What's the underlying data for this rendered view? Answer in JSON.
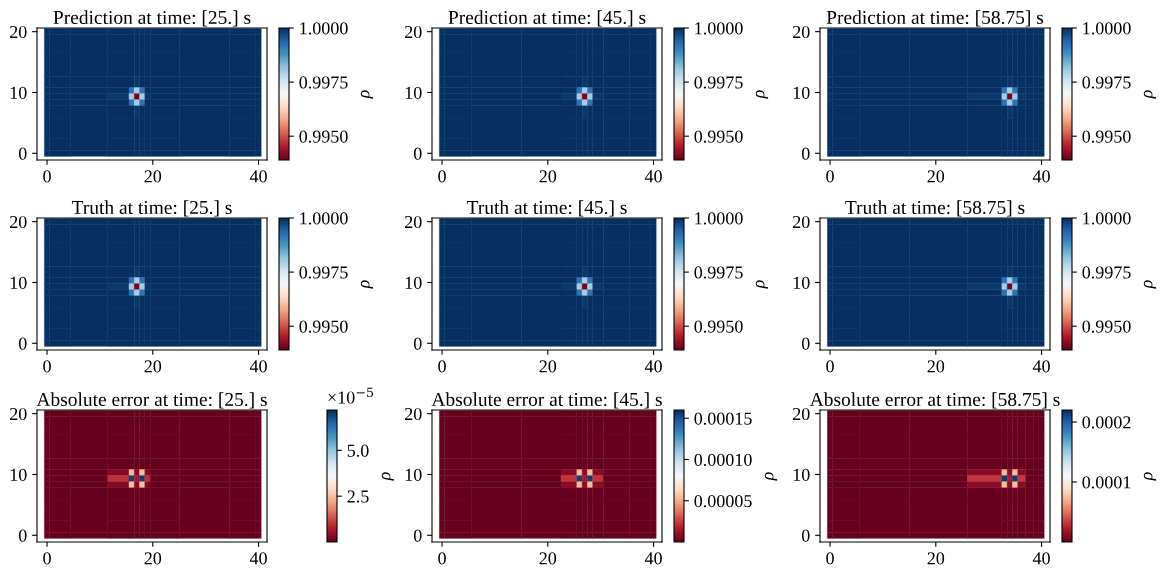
{
  "chart_data": [
    {
      "type": "heatmap",
      "title": "Prediction at time: [25.] s",
      "clabel": "ρ",
      "x": [
        0,
        1,
        8,
        15,
        16,
        17,
        18,
        19,
        20,
        30,
        39,
        40
      ],
      "y": [
        20,
        19,
        14,
        11.3,
        10.3,
        9.3,
        8.3,
        7.3,
        4,
        1,
        0
      ],
      "cells": [
        [
          1,
          1,
          1,
          1,
          1,
          1,
          1,
          1,
          1,
          1,
          1,
          1
        ],
        [
          1,
          1,
          1,
          1,
          1,
          1,
          1,
          1,
          1,
          1,
          1,
          1
        ],
        [
          1,
          1,
          1,
          1,
          1,
          1,
          1,
          1,
          1,
          1,
          1,
          1
        ],
        [
          1,
          1,
          1,
          1,
          1,
          0.9999,
          1,
          1,
          1,
          1,
          1,
          1
        ],
        [
          1,
          1,
          1,
          1,
          0.9992,
          0.998,
          0.9992,
          1,
          1,
          1,
          1,
          1
        ],
        [
          1,
          1,
          1,
          0.9999,
          0.998,
          0.994,
          0.998,
          0.9999,
          1,
          1,
          1,
          1
        ],
        [
          1,
          1,
          1,
          1,
          0.9992,
          0.998,
          0.9992,
          1,
          1,
          1,
          1,
          1
        ],
        [
          1,
          1,
          1,
          1,
          1,
          0.9999,
          1,
          1,
          1,
          1,
          1,
          1
        ],
        [
          1,
          1,
          1,
          1,
          1,
          1,
          1,
          1,
          1,
          1,
          1,
          1
        ],
        [
          1,
          1,
          1,
          1,
          1,
          1,
          1,
          1,
          1,
          1,
          1,
          1
        ],
        [
          1,
          1,
          1,
          1,
          1,
          1,
          1,
          1,
          1,
          1,
          1,
          1
        ]
      ],
      "xlim": [
        -1.9,
        41.6
      ],
      "ylim": [
        -1.1,
        20.6
      ],
      "xticks": [
        0,
        20,
        40
      ],
      "yticks": [
        0,
        10,
        20
      ],
      "clim": [
        0.9939,
        1.0
      ],
      "cticks": [
        {
          "value": 0.995,
          "label": "0.9950"
        },
        {
          "value": 0.9975,
          "label": "0.9975"
        },
        {
          "value": 1.0,
          "label": "1.0000"
        }
      ]
    },
    {
      "type": "heatmap",
      "title": "Prediction at time: [45.] s",
      "clabel": "ρ",
      "x": [
        0,
        1,
        10,
        20,
        25,
        26,
        27,
        28,
        29,
        32,
        39,
        40
      ],
      "y": [
        20,
        19,
        14,
        11.3,
        10.3,
        9.3,
        8.3,
        7.3,
        4,
        1,
        0
      ],
      "cells": [
        [
          1,
          1,
          1,
          1,
          1,
          1,
          1,
          1,
          1,
          1,
          1,
          1
        ],
        [
          1,
          1,
          1,
          1,
          1,
          1,
          1,
          1,
          1,
          1,
          1,
          1
        ],
        [
          1,
          1,
          1,
          1,
          1,
          1,
          1,
          1,
          1,
          1,
          1,
          1
        ],
        [
          1,
          1,
          1,
          1,
          1,
          1,
          0.9999,
          1,
          1,
          1,
          1,
          1
        ],
        [
          1,
          1,
          1,
          1,
          1,
          0.9992,
          0.998,
          0.9992,
          1,
          1,
          1,
          1
        ],
        [
          1,
          1,
          1,
          1,
          0.9999,
          0.998,
          0.994,
          0.998,
          0.9999,
          1,
          1,
          1
        ],
        [
          1,
          1,
          1,
          1,
          1,
          0.9992,
          0.998,
          0.9992,
          1,
          1,
          1,
          1
        ],
        [
          1,
          1,
          1,
          1,
          1,
          1,
          0.9999,
          1,
          1,
          1,
          1,
          1
        ],
        [
          1,
          1,
          1,
          1,
          1,
          1,
          1,
          1,
          1,
          1,
          1,
          1
        ],
        [
          1,
          1,
          1,
          1,
          1,
          1,
          1,
          1,
          1,
          1,
          1,
          1
        ],
        [
          1,
          1,
          1,
          1,
          1,
          1,
          1,
          1,
          1,
          1,
          1,
          1
        ]
      ],
      "xlim": [
        -1.9,
        41.6
      ],
      "ylim": [
        -1.1,
        20.6
      ],
      "xticks": [
        0,
        20,
        40
      ],
      "yticks": [
        0,
        10,
        20
      ],
      "clim": [
        0.9939,
        1.0
      ],
      "cticks": [
        {
          "value": 0.995,
          "label": "0.9950"
        },
        {
          "value": 0.9975,
          "label": "0.9975"
        },
        {
          "value": 1.0,
          "label": "1.0000"
        }
      ]
    },
    {
      "type": "heatmap",
      "title": "Prediction at time: [58.75] s",
      "clabel": "ρ",
      "x": [
        0,
        1,
        10,
        20,
        32,
        33,
        34,
        35,
        36,
        38,
        39,
        40
      ],
      "y": [
        20,
        19,
        14,
        11.3,
        10.3,
        9.3,
        8.3,
        7.3,
        4,
        1,
        0
      ],
      "cells": [
        [
          1,
          1,
          1,
          1,
          1,
          1,
          1,
          1,
          1,
          1,
          1,
          1
        ],
        [
          1,
          1,
          1,
          1,
          1,
          1,
          1,
          1,
          1,
          1,
          1,
          1
        ],
        [
          1,
          1,
          1,
          1,
          1,
          1,
          1,
          1,
          1,
          1,
          1,
          1
        ],
        [
          1,
          1,
          1,
          1,
          1,
          1,
          0.9999,
          1,
          1,
          1,
          1,
          1
        ],
        [
          1,
          1,
          1,
          1,
          1,
          0.9992,
          0.998,
          0.9992,
          1,
          1,
          1,
          1
        ],
        [
          1,
          1,
          1,
          1,
          0.9999,
          0.998,
          0.994,
          0.998,
          0.9999,
          1,
          1,
          1
        ],
        [
          1,
          1,
          1,
          1,
          1,
          0.9992,
          0.998,
          0.9992,
          1,
          1,
          1,
          1
        ],
        [
          1,
          1,
          1,
          1,
          1,
          1,
          0.9999,
          1,
          1,
          1,
          1,
          1
        ],
        [
          1,
          1,
          1,
          1,
          1,
          1,
          1,
          1,
          1,
          1,
          1,
          1
        ],
        [
          1,
          1,
          1,
          1,
          1,
          1,
          1,
          1,
          1,
          1,
          1,
          1
        ],
        [
          1,
          1,
          1,
          1,
          1,
          1,
          1,
          1,
          1,
          1,
          1,
          1
        ]
      ],
      "xlim": [
        -1.9,
        41.6
      ],
      "ylim": [
        -1.1,
        20.6
      ],
      "xticks": [
        0,
        20,
        40
      ],
      "yticks": [
        0,
        10,
        20
      ],
      "clim": [
        0.9939,
        1.0
      ],
      "cticks": [
        {
          "value": 0.995,
          "label": "0.9950"
        },
        {
          "value": 0.9975,
          "label": "0.9975"
        },
        {
          "value": 1.0,
          "label": "1.0000"
        }
      ]
    },
    {
      "type": "heatmap",
      "title": "Truth at time: [25.] s",
      "clabel": "ρ",
      "x": [
        0,
        1,
        8,
        15,
        16,
        17,
        18,
        19,
        20,
        30,
        39,
        40
      ],
      "y": [
        20,
        19,
        14,
        11.3,
        10.3,
        9.3,
        8.3,
        7.3,
        4,
        1,
        0
      ],
      "cells": [
        [
          1,
          1,
          1,
          1,
          1,
          1,
          1,
          1,
          1,
          1,
          1,
          1
        ],
        [
          1,
          1,
          1,
          1,
          1,
          1,
          1,
          1,
          1,
          1,
          1,
          1
        ],
        [
          1,
          1,
          1,
          1,
          1,
          1,
          1,
          1,
          1,
          1,
          1,
          1
        ],
        [
          1,
          1,
          1,
          1,
          1,
          0.9999,
          1,
          1,
          1,
          1,
          1,
          1
        ],
        [
          1,
          1,
          1,
          1,
          0.9992,
          0.998,
          0.9992,
          1,
          1,
          1,
          1,
          1
        ],
        [
          1,
          1,
          1,
          0.9999,
          0.998,
          0.994,
          0.998,
          0.9999,
          1,
          1,
          1,
          1
        ],
        [
          1,
          1,
          1,
          1,
          0.9992,
          0.998,
          0.9992,
          1,
          1,
          1,
          1,
          1
        ],
        [
          1,
          1,
          1,
          1,
          1,
          0.9999,
          1,
          1,
          1,
          1,
          1,
          1
        ],
        [
          1,
          1,
          1,
          1,
          1,
          1,
          1,
          1,
          1,
          1,
          1,
          1
        ],
        [
          1,
          1,
          1,
          1,
          1,
          1,
          1,
          1,
          1,
          1,
          1,
          1
        ],
        [
          1,
          1,
          1,
          1,
          1,
          1,
          1,
          1,
          1,
          1,
          1,
          1
        ]
      ],
      "xlim": [
        -1.9,
        41.6
      ],
      "ylim": [
        -1.1,
        20.6
      ],
      "xticks": [
        0,
        20,
        40
      ],
      "yticks": [
        0,
        10,
        20
      ],
      "clim": [
        0.9939,
        1.0
      ],
      "cticks": [
        {
          "value": 0.995,
          "label": "0.9950"
        },
        {
          "value": 0.9975,
          "label": "0.9975"
        },
        {
          "value": 1.0,
          "label": "1.0000"
        }
      ]
    },
    {
      "type": "heatmap",
      "title": "Truth at time: [45.] s",
      "clabel": "ρ",
      "x": [
        0,
        1,
        10,
        20,
        25,
        26,
        27,
        28,
        29,
        32,
        39,
        40
      ],
      "y": [
        20,
        19,
        14,
        11.3,
        10.3,
        9.3,
        8.3,
        7.3,
        4,
        1,
        0
      ],
      "cells": [
        [
          1,
          1,
          1,
          1,
          1,
          1,
          1,
          1,
          1,
          1,
          1,
          1
        ],
        [
          1,
          1,
          1,
          1,
          1,
          1,
          1,
          1,
          1,
          1,
          1,
          1
        ],
        [
          1,
          1,
          1,
          1,
          1,
          1,
          1,
          1,
          1,
          1,
          1,
          1
        ],
        [
          1,
          1,
          1,
          1,
          1,
          1,
          0.9999,
          1,
          1,
          1,
          1,
          1
        ],
        [
          1,
          1,
          1,
          1,
          1,
          0.9992,
          0.998,
          0.9992,
          1,
          1,
          1,
          1
        ],
        [
          1,
          1,
          1,
          1,
          0.9999,
          0.998,
          0.994,
          0.998,
          0.9999,
          1,
          1,
          1
        ],
        [
          1,
          1,
          1,
          1,
          1,
          0.9992,
          0.998,
          0.9992,
          1,
          1,
          1,
          1
        ],
        [
          1,
          1,
          1,
          1,
          1,
          1,
          0.9999,
          1,
          1,
          1,
          1,
          1
        ],
        [
          1,
          1,
          1,
          1,
          1,
          1,
          1,
          1,
          1,
          1,
          1,
          1
        ],
        [
          1,
          1,
          1,
          1,
          1,
          1,
          1,
          1,
          1,
          1,
          1,
          1
        ],
        [
          1,
          1,
          1,
          1,
          1,
          1,
          1,
          1,
          1,
          1,
          1,
          1
        ]
      ],
      "xlim": [
        -1.9,
        41.6
      ],
      "ylim": [
        -1.1,
        20.6
      ],
      "xticks": [
        0,
        20,
        40
      ],
      "yticks": [
        0,
        10,
        20
      ],
      "clim": [
        0.9939,
        1.0
      ],
      "cticks": [
        {
          "value": 0.995,
          "label": "0.9950"
        },
        {
          "value": 0.9975,
          "label": "0.9975"
        },
        {
          "value": 1.0,
          "label": "1.0000"
        }
      ]
    },
    {
      "type": "heatmap",
      "title": "Truth at time: [58.75] s",
      "clabel": "ρ",
      "x": [
        0,
        1,
        10,
        20,
        32,
        33,
        34,
        35,
        36,
        38,
        39,
        40
      ],
      "y": [
        20,
        19,
        14,
        11.3,
        10.3,
        9.3,
        8.3,
        7.3,
        4,
        1,
        0
      ],
      "cells": [
        [
          1,
          1,
          1,
          1,
          1,
          1,
          1,
          1,
          1,
          1,
          1,
          1
        ],
        [
          1,
          1,
          1,
          1,
          1,
          1,
          1,
          1,
          1,
          1,
          1,
          1
        ],
        [
          1,
          1,
          1,
          1,
          1,
          1,
          1,
          1,
          1,
          1,
          1,
          1
        ],
        [
          1,
          1,
          1,
          1,
          1,
          1,
          0.9999,
          1,
          1,
          1,
          1,
          1
        ],
        [
          1,
          1,
          1,
          1,
          1,
          0.9992,
          0.998,
          0.9992,
          1,
          1,
          1,
          1
        ],
        [
          1,
          1,
          1,
          1,
          0.9999,
          0.998,
          0.994,
          0.998,
          0.9999,
          1,
          1,
          1
        ],
        [
          1,
          1,
          1,
          1,
          1,
          0.9992,
          0.998,
          0.9992,
          1,
          1,
          1,
          1
        ],
        [
          1,
          1,
          1,
          1,
          1,
          1,
          0.9999,
          1,
          1,
          1,
          1,
          1
        ],
        [
          1,
          1,
          1,
          1,
          1,
          1,
          1,
          1,
          1,
          1,
          1,
          1
        ],
        [
          1,
          1,
          1,
          1,
          1,
          1,
          1,
          1,
          1,
          1,
          1,
          1
        ],
        [
          1,
          1,
          1,
          1,
          1,
          1,
          1,
          1,
          1,
          1,
          1,
          1
        ]
      ],
      "xlim": [
        -1.9,
        41.6
      ],
      "ylim": [
        -1.1,
        20.6
      ],
      "xticks": [
        0,
        20,
        40
      ],
      "yticks": [
        0,
        10,
        20
      ],
      "clim": [
        0.9939,
        1.0
      ],
      "cticks": [
        {
          "value": 0.995,
          "label": "0.9950"
        },
        {
          "value": 0.9975,
          "label": "0.9975"
        },
        {
          "value": 1.0,
          "label": "1.0000"
        }
      ]
    },
    {
      "type": "heatmap",
      "title": "Absolute error at time: [25.] s",
      "clabel": "ρ",
      "annotations": [
        "×10$^{−5}$"
      ],
      "x": [
        0,
        1,
        8,
        15,
        16,
        17,
        18,
        19,
        20,
        30,
        39,
        40
      ],
      "y": [
        20,
        19,
        14,
        11.3,
        10.3,
        9.3,
        8.3,
        7.3,
        4,
        1,
        0
      ],
      "cells": [
        [
          0,
          0,
          0,
          0,
          0,
          0,
          0,
          0,
          0,
          0,
          0,
          0
        ],
        [
          0,
          0,
          0,
          0,
          0,
          0,
          0,
          0,
          0,
          0,
          0,
          0
        ],
        [
          0,
          0,
          0,
          0,
          0,
          0,
          0,
          0,
          0,
          0,
          0,
          0
        ],
        [
          0,
          0,
          0,
          0,
          0,
          0,
          0,
          0,
          0,
          0,
          0,
          0
        ],
        [
          0,
          0,
          0,
          0.3,
          2.5,
          0.3,
          2.5,
          0.3,
          0,
          0,
          0,
          0
        ],
        [
          0,
          0,
          0,
          1,
          7,
          0.7,
          7,
          1,
          0,
          0,
          0,
          0
        ],
        [
          0,
          0,
          0,
          0.3,
          2.5,
          0.3,
          2.5,
          0.3,
          0,
          0,
          0,
          0
        ],
        [
          0,
          0,
          0,
          0,
          0,
          0,
          0,
          0,
          0,
          0,
          0,
          0
        ],
        [
          0,
          0,
          0,
          0,
          0,
          0,
          0,
          0,
          0,
          0,
          0,
          0
        ],
        [
          0,
          0,
          0,
          0,
          0,
          0,
          0,
          0,
          0,
          0,
          0,
          0
        ],
        [
          0,
          0,
          0,
          0,
          0,
          0,
          0,
          0,
          0,
          0,
          0,
          0
        ]
      ],
      "xlim": [
        -1.9,
        41.6
      ],
      "ylim": [
        -1.1,
        20.6
      ],
      "xticks": [
        0,
        20,
        40
      ],
      "yticks": [
        0,
        10,
        20
      ],
      "clim": [
        0,
        7.2
      ],
      "cticks": [
        2.5,
        {
          "value": 5,
          "label": "5.0"
        }
      ]
    },
    {
      "type": "heatmap",
      "title": "Absolute error at time: [45.] s",
      "clabel": "ρ",
      "x": [
        0,
        1,
        10,
        20,
        25,
        26,
        27,
        28,
        29,
        32,
        39,
        40
      ],
      "y": [
        20,
        19,
        14,
        11.3,
        10.3,
        9.3,
        8.3,
        7.3,
        4,
        1,
        0
      ],
      "cells": [
        [
          0,
          0,
          0,
          0,
          0,
          0,
          0,
          0,
          0,
          0,
          0,
          0
        ],
        [
          0,
          0,
          0,
          0,
          0,
          0,
          0,
          0,
          0,
          0,
          0,
          0
        ],
        [
          0,
          0,
          0,
          0,
          0,
          0,
          0,
          0,
          0,
          0,
          0,
          0
        ],
        [
          0,
          0,
          0,
          0,
          0,
          0,
          0,
          0,
          0,
          0,
          0,
          0
        ],
        [
          0,
          0,
          0,
          0,
          8e-06,
          5.4e-05,
          8e-06,
          5.4e-05,
          8e-06,
          0,
          0,
          0
        ],
        [
          0,
          0,
          0,
          0,
          2.3e-05,
          0.000155,
          1.5e-05,
          0.000155,
          2.3e-05,
          0,
          0,
          0
        ],
        [
          0,
          0,
          0,
          0,
          8e-06,
          5.4e-05,
          8e-06,
          5.4e-05,
          8e-06,
          0,
          0,
          0
        ],
        [
          0,
          0,
          0,
          0,
          0,
          0,
          0,
          0,
          0,
          0,
          0,
          0
        ],
        [
          0,
          0,
          0,
          0,
          0,
          0,
          0,
          0,
          0,
          0,
          0,
          0
        ],
        [
          0,
          0,
          0,
          0,
          0,
          0,
          0,
          0,
          0,
          0,
          0,
          0
        ],
        [
          0,
          0,
          0,
          0,
          0,
          0,
          0,
          0,
          0,
          0,
          0,
          0
        ]
      ],
      "xlim": [
        -1.9,
        41.6
      ],
      "ylim": [
        -1.1,
        20.6
      ],
      "xticks": [
        0,
        20,
        40
      ],
      "yticks": [
        0,
        10,
        20
      ],
      "clim": [
        0,
        0.00016
      ],
      "cticks": [
        {
          "value": 5e-05,
          "label": "0.00005"
        },
        {
          "value": 0.0001,
          "label": "0.00010"
        },
        {
          "value": 0.00015,
          "label": "0.00015"
        }
      ]
    },
    {
      "type": "heatmap",
      "title": "Absolute error at time: [58.75] s",
      "clabel": "ρ",
      "x": [
        0,
        1,
        10,
        20,
        32,
        33,
        34,
        35,
        36,
        38,
        39,
        40
      ],
      "y": [
        20,
        19,
        14,
        11.3,
        10.3,
        9.3,
        8.3,
        7.3,
        4,
        1,
        0
      ],
      "cells": [
        [
          0,
          0,
          0,
          0,
          0,
          0,
          0,
          0,
          0,
          0,
          0,
          0
        ],
        [
          0,
          0,
          0,
          0,
          0,
          0,
          0,
          0,
          0,
          0,
          0,
          0
        ],
        [
          0,
          0,
          0,
          0,
          0,
          0,
          0,
          0,
          0,
          0,
          0,
          0
        ],
        [
          0,
          0,
          0,
          0,
          0,
          0,
          0,
          0,
          0,
          0,
          0,
          0
        ],
        [
          0,
          0,
          0,
          0,
          1.1e-05,
          7.5e-05,
          1.1e-05,
          7.5e-05,
          1.1e-05,
          0,
          0,
          0
        ],
        [
          0,
          0,
          0,
          0,
          3.2e-05,
          0.000215,
          2.2e-05,
          0.000215,
          3.2e-05,
          0,
          0,
          0
        ],
        [
          0,
          0,
          0,
          0,
          1.1e-05,
          7.5e-05,
          1.1e-05,
          7.5e-05,
          1.1e-05,
          0,
          0,
          0
        ],
        [
          0,
          0,
          0,
          0,
          0,
          0,
          0,
          0,
          0,
          0,
          0,
          0
        ],
        [
          0,
          0,
          0,
          0,
          0,
          0,
          0,
          0,
          0,
          0,
          0,
          0
        ],
        [
          0,
          0,
          0,
          0,
          0,
          0,
          0,
          0,
          0,
          0,
          0,
          0
        ],
        [
          0,
          0,
          0,
          0,
          0,
          0,
          0,
          0,
          0,
          0,
          0,
          0
        ]
      ],
      "xlim": [
        -1.9,
        41.6
      ],
      "ylim": [
        -1.1,
        20.6
      ],
      "xticks": [
        0,
        20,
        40
      ],
      "yticks": [
        0,
        10,
        20
      ],
      "clim": [
        0,
        0.00022
      ],
      "cticks": [
        {
          "value": 0.0001,
          "label": "0.0001"
        },
        {
          "value": 0.0002,
          "label": "0.0002"
        }
      ]
    }
  ]
}
